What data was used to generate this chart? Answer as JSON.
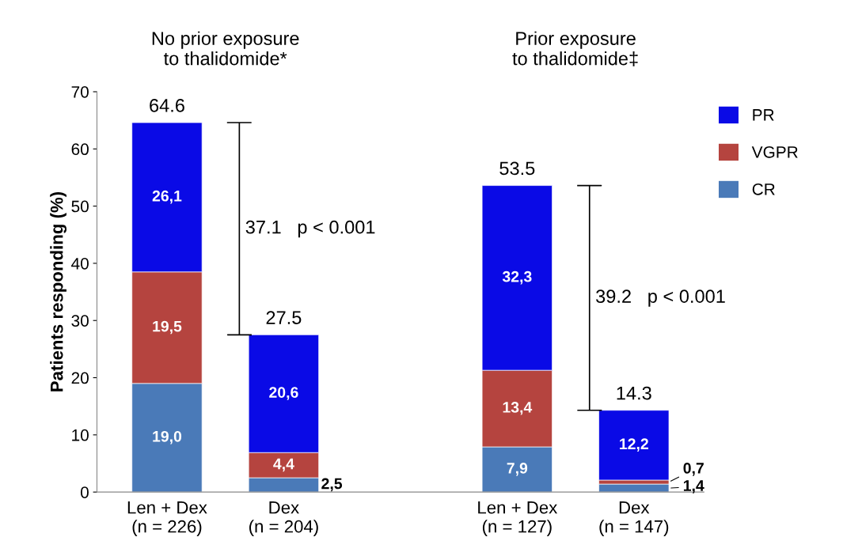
{
  "chart_data": {
    "type": "bar",
    "stacked": true,
    "categories": [
      "Len + Dex\n(n = 226)",
      "Dex\n(n = 204)",
      null,
      "Len + Dex\n(n = 127)",
      "Dex\n(n = 147)"
    ],
    "series": [
      {
        "name": "CR",
        "color": "#4a7ab8",
        "values": [
          19.0,
          2.5,
          null,
          7.9,
          1.4
        ],
        "value_labels": [
          "19,0",
          "2,5",
          null,
          "7,9",
          "1,4"
        ]
      },
      {
        "name": "VGPR",
        "color": "#b5443f",
        "values": [
          19.5,
          4.4,
          null,
          13.4,
          0.7
        ],
        "value_labels": [
          "19,5",
          "4,4",
          null,
          "13,4",
          "0,7"
        ]
      },
      {
        "name": "PR",
        "color": "#0a0ae6",
        "values": [
          26.1,
          20.6,
          null,
          32.3,
          12.2
        ],
        "value_labels": [
          "26,1",
          "20,6",
          null,
          "32,3",
          "12,2"
        ]
      }
    ],
    "totals": [
      "64.6",
      "27.5",
      null,
      "53.5",
      "14.3"
    ],
    "ylabel": "Patients responding (%)",
    "ylim": [
      0,
      70
    ],
    "yticks": [
      0,
      10,
      20,
      30,
      40,
      50,
      60,
      70
    ],
    "legend": "top right",
    "grid": false,
    "annotations": [
      "No prior exposure\nto thalidomide*",
      "Prior exposure\nto thalidomide‡",
      "37.1   p < 0.001",
      "39.2   p < 0.001"
    ]
  }
}
